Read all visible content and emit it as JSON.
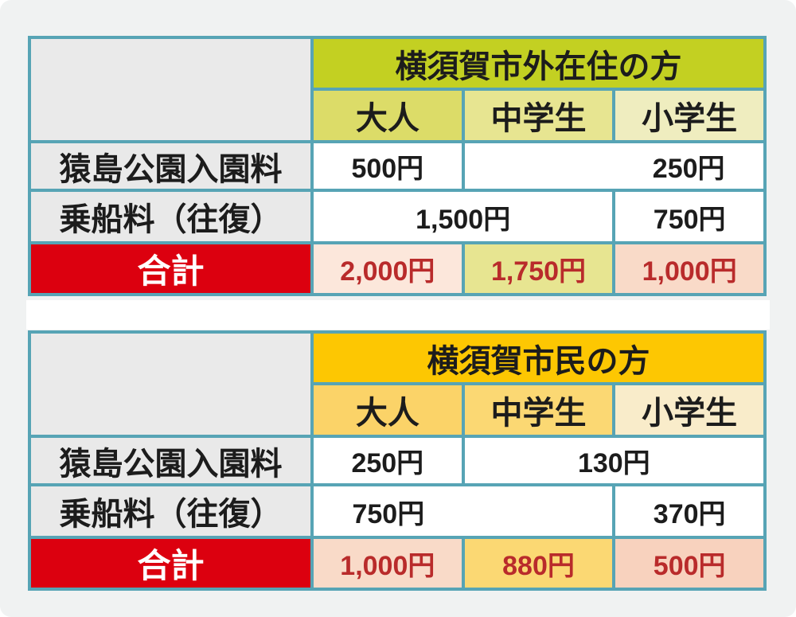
{
  "page": {
    "background": "#f0f2f2",
    "grid_line_color": "#57a4b5"
  },
  "colors": {
    "table1_header_bg": "#c3d022",
    "table1_col_adult_bg": "#dcdc68",
    "table1_col_junior_bg": "#e7e591",
    "table1_col_elementary_bg": "#efedbf",
    "table2_header_bg": "#fdc702",
    "table2_col_adult_bg": "#fbd368",
    "table2_col_junior_bg": "#fbd873",
    "table2_col_elementary_bg": "#f9ecca",
    "row_label_bg": "#e9e9e9",
    "total_label_bg": "#dc000f",
    "total_label_text": "#ffffff",
    "total_value_text": "#b92b2b",
    "total_value_bg_light": "#fce7db",
    "total_value_bg_dark": "#f8d2be"
  },
  "table1": {
    "title": "横須賀市外在住の方",
    "columns": {
      "adult": "大人",
      "junior": "中学生",
      "elementary": "小学生"
    },
    "rows": {
      "park": {
        "label": "猿島公園入園料",
        "adult": "500円",
        "junior_elementary": "250円"
      },
      "boat": {
        "label": "乗船料（往復）",
        "adult_junior": "1,500円",
        "elementary": "750円"
      }
    },
    "total": {
      "label": "合計",
      "adult": "2,000円",
      "junior": "1,750円",
      "elementary": "1,000円"
    }
  },
  "table2": {
    "title": "横須賀市民の方",
    "columns": {
      "adult": "大人",
      "junior": "中学生",
      "elementary": "小学生"
    },
    "rows": {
      "park": {
        "label": "猿島公園入園料",
        "adult": "250円",
        "junior_elementary": "130円"
      },
      "boat": {
        "label": "乗船料（往復）",
        "adult_junior": "750円",
        "elementary": "370円"
      }
    },
    "total": {
      "label": "合計",
      "adult": "1,000円",
      "junior": "880円",
      "elementary": "500円"
    }
  },
  "chart_data": [
    {
      "type": "table",
      "title": "横須賀市外在住の方",
      "columns": [
        "",
        "大人",
        "中学生",
        "小学生"
      ],
      "rows": [
        [
          "猿島公園入園料",
          "500円",
          "250円",
          "250円"
        ],
        [
          "乗船料（往復）",
          "1,500円",
          "1,500円",
          "750円"
        ],
        [
          "合計",
          "2,000円",
          "1,750円",
          "1,000円"
        ]
      ],
      "merged_cells": [
        "猿島公園入園料: 250円 spans 中学生+小学生",
        "乗船料（往復）: 1,500円 spans 大人+中学生"
      ]
    },
    {
      "type": "table",
      "title": "横須賀市民の方",
      "columns": [
        "",
        "大人",
        "中学生",
        "小学生"
      ],
      "rows": [
        [
          "猿島公園入園料",
          "250円",
          "130円",
          "130円"
        ],
        [
          "乗船料（往復）",
          "750円",
          "750円",
          "370円"
        ],
        [
          "合計",
          "1,000円",
          "880円",
          "500円"
        ]
      ],
      "merged_cells": [
        "猿島公園入園料: 130円 spans 中学生+小学生",
        "乗船料（往復）: 750円 spans 大人+中学生"
      ]
    }
  ]
}
